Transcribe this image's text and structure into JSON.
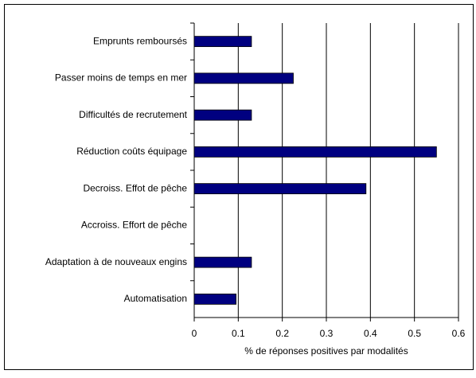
{
  "chart_data": {
    "type": "bar",
    "orientation": "horizontal",
    "xlabel": "% de réponses positives par modalités",
    "categories": [
      "Emprunts remboursés",
      "Passer moins de temps en mer",
      "Difficultés de recrutement",
      "Réduction coûts équipage",
      "Decroiss. Effot de pêche",
      "Accroiss. Effort de pêche",
      "Adaptation à de nouveaux engins",
      "Automatisation"
    ],
    "values": [
      0.13,
      0.225,
      0.13,
      0.55,
      0.39,
      0,
      0.13,
      0.095
    ],
    "color": "#000080",
    "xlim": [
      0,
      0.6
    ],
    "xticks": [
      0,
      0.1,
      0.2,
      0.3,
      0.4,
      0.5,
      0.6
    ],
    "grid": true
  }
}
